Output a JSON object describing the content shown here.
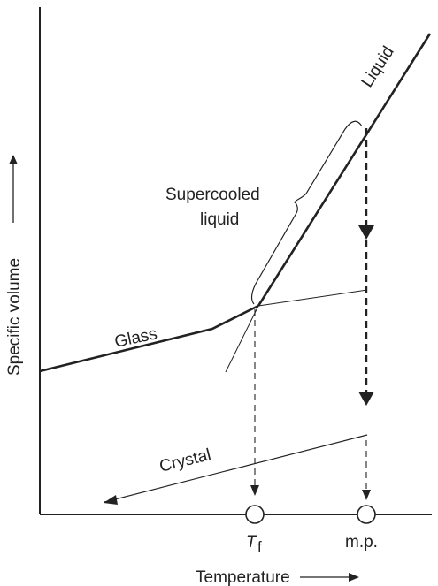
{
  "axes": {
    "y_label": "Specific volume",
    "x_label": "Temperature"
  },
  "curves": {
    "liquid": "Liquid",
    "supercooled": "Supercooled",
    "supercooled_2": "liquid",
    "glass": "Glass",
    "crystal": "Crystal"
  },
  "markers": {
    "tf_main": "T",
    "tf_sub": "f",
    "mp": "m.p."
  },
  "colors": {
    "ink": "#222222",
    "background": "#ffffff"
  }
}
